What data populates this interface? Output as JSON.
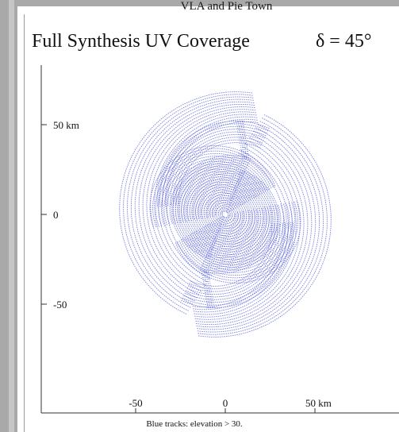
{
  "chart_data": {
    "type": "scatter",
    "supertitle": "VLA and Pie Town",
    "title": "Full Synthesis UV Coverage",
    "subtitle": "δ = 45°",
    "footnote": "Blue tracks: elevation > 30.",
    "xlabel": "",
    "ylabel": "",
    "x_ticks": [
      {
        "value": -50,
        "label": "-50"
      },
      {
        "value": 0,
        "label": "0"
      },
      {
        "value": 50,
        "label": "50 km"
      }
    ],
    "y_ticks": [
      {
        "value": 50,
        "label": "50 km"
      },
      {
        "value": 0,
        "label": "0"
      },
      {
        "value": -50,
        "label": "-50"
      }
    ],
    "xlim": [
      -85,
      85
    ],
    "ylim": [
      -85,
      85
    ],
    "grid": false,
    "series": [
      {
        "color": "#6670d8",
        "inner_tracks": {
          "count": 26,
          "min_radius_km": 2,
          "max_radius_km": 36
        },
        "outer_tracks": {
          "count": 13,
          "min_radius_km": 45,
          "max_radius_km": 65,
          "start_angle_deg": 10,
          "end_angle_deg": 190
        },
        "mid_tracks": {
          "count": 9,
          "min_radius_km": 32,
          "max_radius_km": 44,
          "start_angle_deg": 25,
          "end_angle_deg": 155
        }
      }
    ]
  }
}
